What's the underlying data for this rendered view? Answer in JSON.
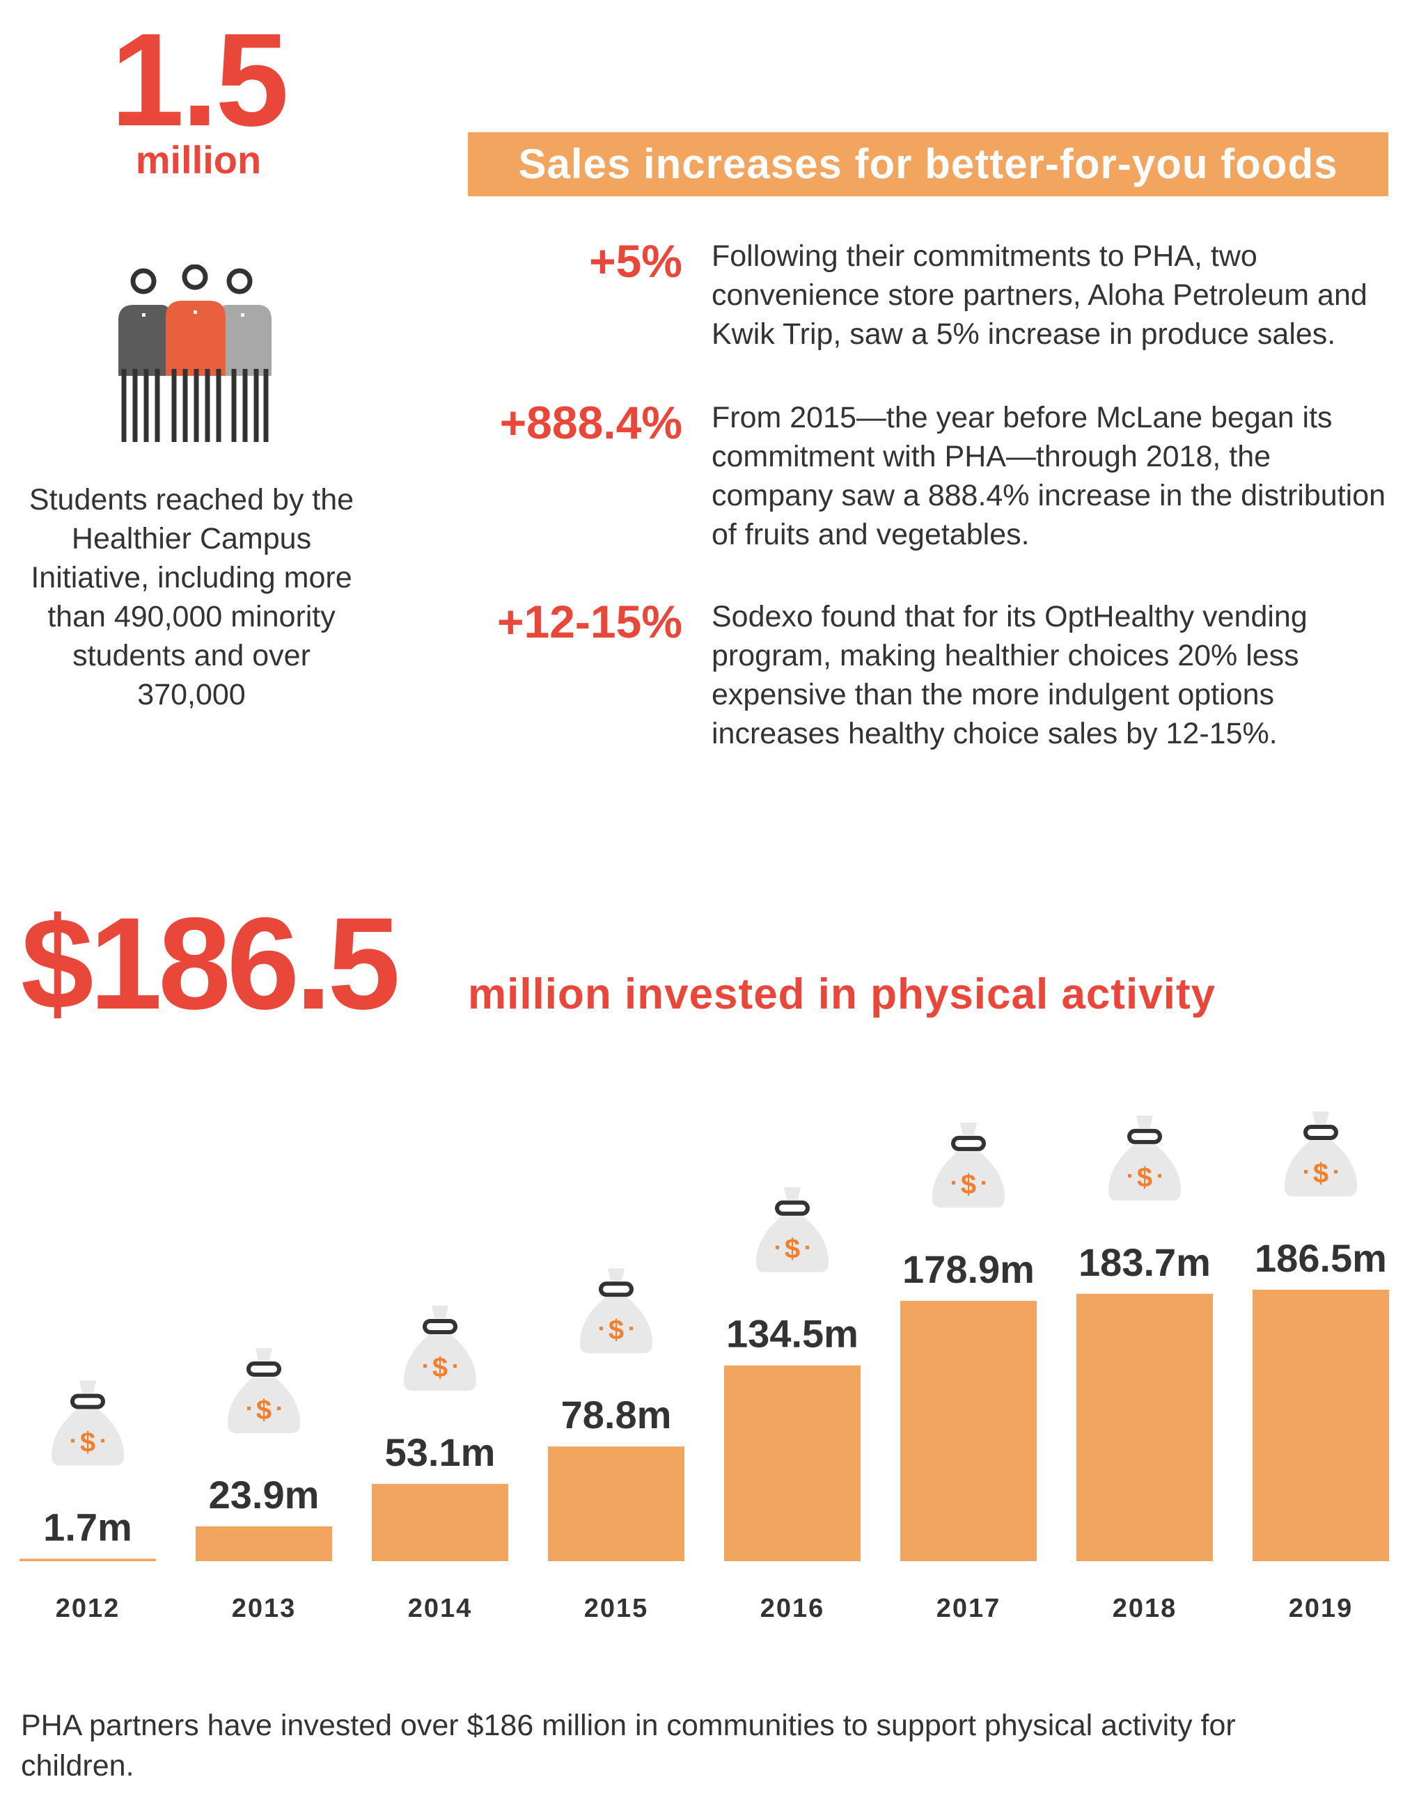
{
  "colors": {
    "accent_red": "#e8473a",
    "bar_orange": "#f2a55f",
    "bag_gray": "#e8e8e8",
    "text_dark": "#333333"
  },
  "left_stat": {
    "value": "1.5",
    "unit": "million",
    "icon": "people-group-icon",
    "description": "Students reached by the Healthier Campus Initiative, including more than 490,000 minority students and over 370,000"
  },
  "sales": {
    "header": "Sales increases for better-for-you foods",
    "items": [
      {
        "pct": "+5%",
        "text": "Following their commitments to PHA, two convenience store partners, Aloha Petroleum and Kwik Trip, saw a 5% increase in produce sales."
      },
      {
        "pct": "+888.4%",
        "text": "From 2015—the year before McLane began its commitment with PHA—through 2018, the company saw a 888.4% increase in the distribution of fruits and vegetables."
      },
      {
        "pct": "+12-15%",
        "text": "Sodexo found that for its OptHealthy vending program, making healthier choices 20% less expensive than the more indulgent options increases healthy choice sales by 12-15%."
      }
    ]
  },
  "investment": {
    "amount": "$186.5",
    "label": "million invested in physical activity",
    "footer": "PHA partners have invested over $186 million in communities to support physical activity for children."
  },
  "chart_data": {
    "type": "bar",
    "categories": [
      "2012",
      "2013",
      "2014",
      "2015",
      "2016",
      "2017",
      "2018",
      "2019"
    ],
    "values": [
      1.7,
      23.9,
      53.1,
      78.8,
      134.5,
      178.9,
      183.7,
      186.5
    ],
    "data_labels": [
      "1.7m",
      "23.9m",
      "53.1m",
      "78.8m",
      "134.5m",
      "178.9m",
      "183.7m",
      "186.5m"
    ],
    "title": "",
    "xlabel": "",
    "ylabel": "",
    "ylim": [
      0,
      186.5
    ],
    "grid": false,
    "marker_icon": "money-bag-icon"
  }
}
